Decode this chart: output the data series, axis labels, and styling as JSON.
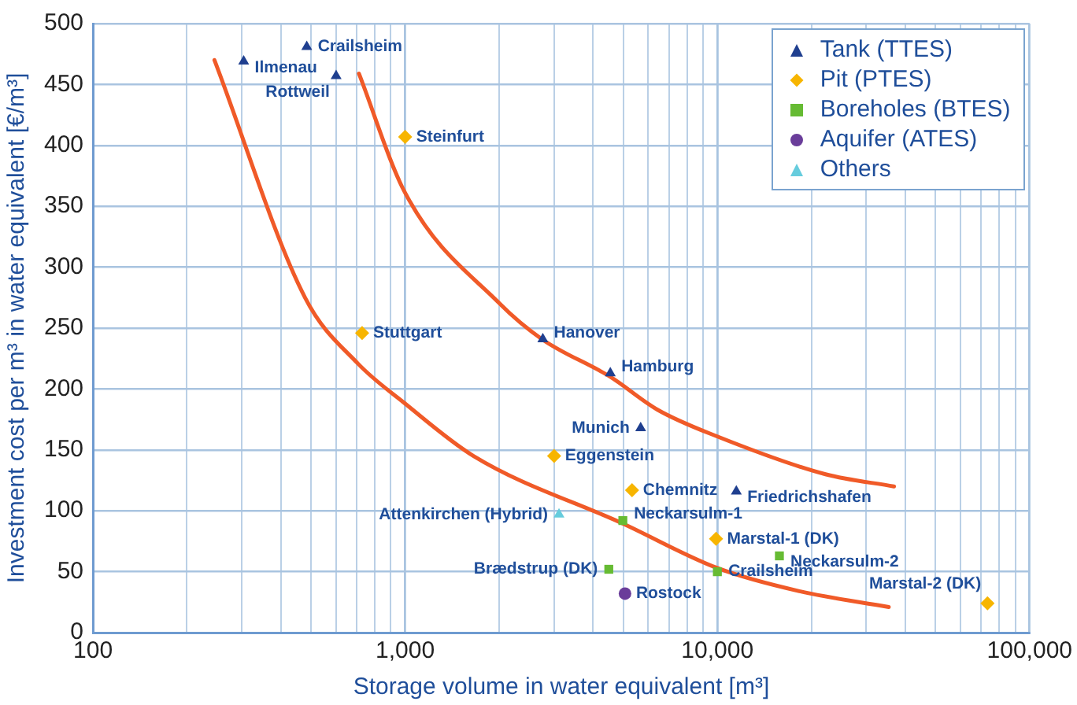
{
  "chart_data": {
    "type": "scatter",
    "xlabel": "Storage volume in water equivalent [m³]",
    "ylabel": "Investment cost per m³ in water equivalent [€/m³]",
    "log": "x",
    "grid": true,
    "legend": "top right",
    "xlim": [
      100,
      100000
    ],
    "ylim": [
      0,
      500
    ],
    "xticks": [
      100,
      {
        "value": 200,
        "label": null
      },
      {
        "value": 300,
        "label": null
      },
      {
        "value": 400,
        "label": null
      },
      {
        "value": 500,
        "label": null
      },
      {
        "value": 600,
        "label": null
      },
      {
        "value": 700,
        "label": null
      },
      {
        "value": 800,
        "label": null
      },
      {
        "value": 900,
        "label": null
      },
      {
        "value": 1000,
        "label": "1,000"
      },
      {
        "value": 2000,
        "label": null
      },
      {
        "value": 3000,
        "label": null
      },
      {
        "value": 4000,
        "label": null
      },
      {
        "value": 5000,
        "label": null
      },
      {
        "value": 6000,
        "label": null
      },
      {
        "value": 7000,
        "label": null
      },
      {
        "value": 8000,
        "label": null
      },
      {
        "value": 9000,
        "label": null
      },
      {
        "value": 10000,
        "label": "10,000"
      },
      {
        "value": 20000,
        "label": null
      },
      {
        "value": 30000,
        "label": null
      },
      {
        "value": 40000,
        "label": null
      },
      {
        "value": 50000,
        "label": null
      },
      {
        "value": 60000,
        "label": null
      },
      {
        "value": 70000,
        "label": null
      },
      {
        "value": 80000,
        "label": null
      },
      {
        "value": 90000,
        "label": null
      },
      {
        "value": 100000,
        "label": "100,000"
      }
    ],
    "yticks": [
      0,
      50,
      100,
      150,
      200,
      250,
      300,
      350,
      400,
      450,
      500
    ],
    "series": [
      {
        "name": "Tank (TTES)",
        "marker": "triangle",
        "color": "#1f3f8f",
        "x": [
          304,
          484,
          601,
          2760,
          4540,
          5680,
          11500
        ],
        "values": [
          469,
          481,
          457,
          241,
          213,
          168,
          116
        ]
      },
      {
        "name": "Pit (PTES)",
        "marker": "diamond",
        "color": "#f7b500",
        "x": [
          1000,
          728,
          3000,
          5330,
          9900,
          73300
        ],
        "values": [
          407,
          246,
          145,
          117,
          77,
          24
        ]
      },
      {
        "name": "Boreholes (BTES)",
        "marker": "square",
        "color": "#66bb33",
        "x": [
          4980,
          15800,
          4490,
          10000
        ],
        "values": [
          92,
          63,
          52,
          50
        ]
      },
      {
        "name": "Aquifer (ATES)",
        "marker": "circle",
        "color": "#6a3d9a",
        "x": [
          5060
        ],
        "values": [
          32
        ]
      },
      {
        "name": "Others",
        "marker": "triangle",
        "color": "#66ccdd",
        "x": [
          3110
        ],
        "values": [
          97
        ]
      },
      {
        "type": "line",
        "marker": "none",
        "color": "#f05a28",
        "x": [
          245,
          478,
          705,
          1000,
          1656,
          5030,
          10000,
          18300,
          35400
        ],
        "values": [
          470,
          275,
          221,
          188,
          145,
          89,
          53,
          34,
          21
        ]
      },
      {
        "type": "line",
        "marker": "none",
        "color": "#f05a28",
        "x": [
          711,
          1000,
          2010,
          2740,
          4540,
          6430,
          10000,
          22200,
          36800
        ],
        "values": [
          459,
          361,
          270,
          241,
          210,
          183,
          161,
          130,
          120
        ]
      }
    ],
    "annotations": [
      {
        "text": "Ilmenau",
        "x": 304,
        "y": 469
      },
      {
        "text": "Crailsheim",
        "x": 484,
        "y": 481
      },
      {
        "text": "Rottweil",
        "x": 601,
        "y": 457
      },
      {
        "text": "Hanover",
        "x": 2760,
        "y": 241
      },
      {
        "text": "Hamburg",
        "x": 4540,
        "y": 213
      },
      {
        "text": "Munich",
        "x": 5680,
        "y": 168
      },
      {
        "text": "Friedrichshafen",
        "x": 11500,
        "y": 116
      },
      {
        "text": "Steinfurt",
        "x": 1000,
        "y": 407
      },
      {
        "text": "Stuttgart",
        "x": 728,
        "y": 246
      },
      {
        "text": "Eggenstein",
        "x": 3000,
        "y": 145
      },
      {
        "text": "Chemnitz",
        "x": 5330,
        "y": 117
      },
      {
        "text": "Marstal-1 (DK)",
        "x": 9900,
        "y": 77
      },
      {
        "text": "Marstal-2 (DK)",
        "x": 73300,
        "y": 24
      },
      {
        "text": "Neckarsulm-1",
        "x": 4980,
        "y": 92
      },
      {
        "text": "Neckarsulm-2",
        "x": 15800,
        "y": 63
      },
      {
        "text": "Brædstrup (DK)",
        "x": 4490,
        "y": 52
      },
      {
        "text": "Crailsheim",
        "x": 10000,
        "y": 50
      },
      {
        "text": "Rostock",
        "x": 5060,
        "y": 32
      },
      {
        "text": "Attenkirchen (Hybrid)",
        "x": 3110,
        "y": 97
      }
    ]
  }
}
